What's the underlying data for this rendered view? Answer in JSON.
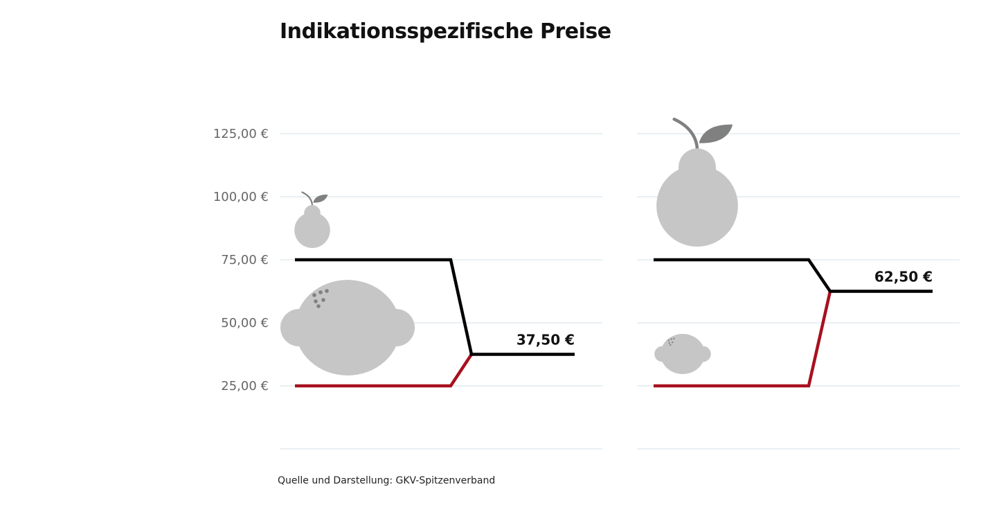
{
  "title": "Indikationsspezifische Preise",
  "source": "Quelle und Darstellung: GKV-Spitzenverband",
  "colors": {
    "line_high": "#000000",
    "line_low": "#a8101e",
    "fruit": "#c6c6c6",
    "fruit_detail": "#808080",
    "grid": "#e2ecef"
  },
  "chart_data": [
    {
      "type": "line",
      "panel": "left",
      "ylim": [
        0,
        125
      ],
      "yticks": [
        25,
        50,
        75,
        100,
        125
      ],
      "ytick_labels": [
        "25,00 €",
        "50,00 €",
        "75,00 €",
        "100,00 €",
        "125,00 €"
      ],
      "series": [
        {
          "icon": "pear-icon",
          "start_value": 75,
          "end_value": 37.5
        },
        {
          "icon": "lemon-icon",
          "start_value": 25,
          "end_value": 37.5
        }
      ],
      "mixed_price_label": "37,50 €"
    },
    {
      "type": "line",
      "panel": "right",
      "ylim": [
        0,
        125
      ],
      "yticks": [
        25,
        50,
        75,
        100,
        125
      ],
      "series": [
        {
          "icon": "pear-icon",
          "start_value": 75,
          "end_value": 62.5
        },
        {
          "icon": "lemon-icon",
          "start_value": 25,
          "end_value": 62.5
        }
      ],
      "mixed_price_label": "62,50 €"
    }
  ]
}
